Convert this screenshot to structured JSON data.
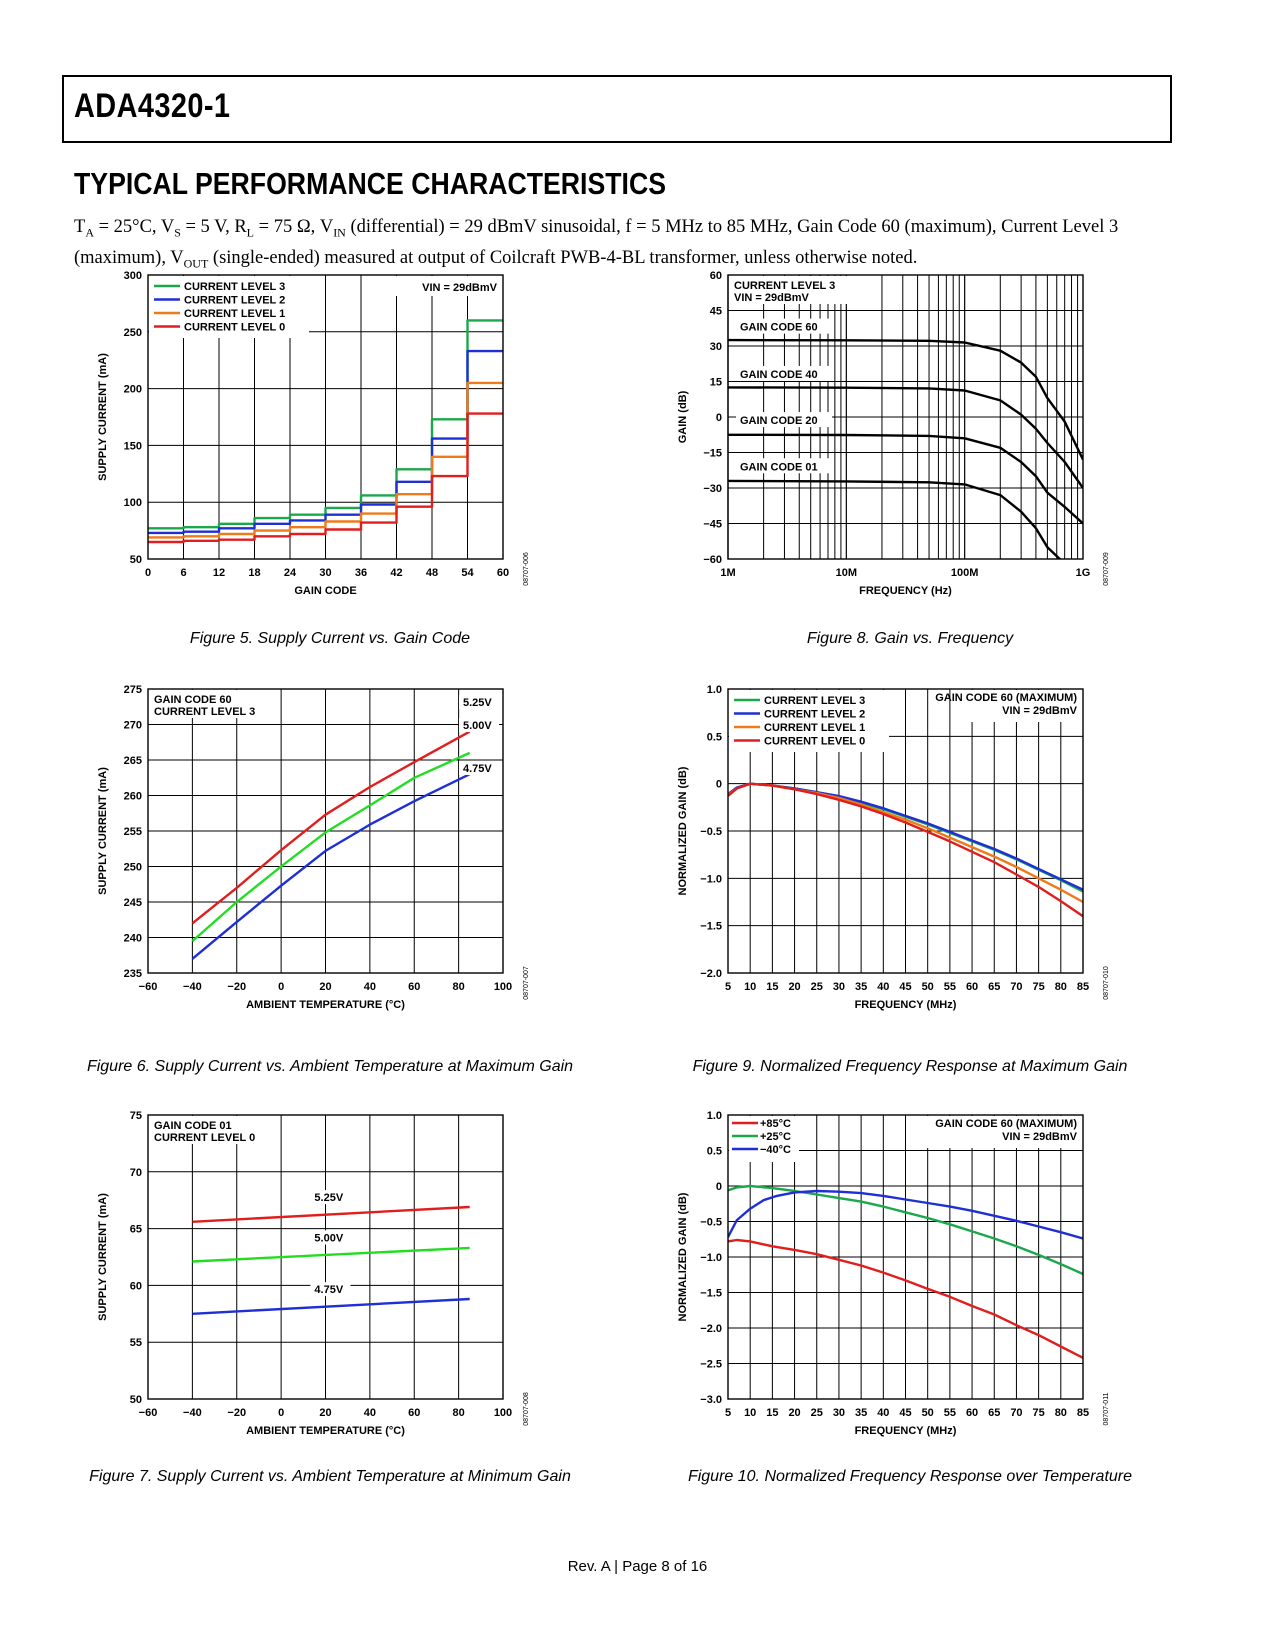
{
  "header": {
    "part_number": "ADA4320-1"
  },
  "section_title": "TYPICAL PERFORMANCE CHARACTERISTICS",
  "conditions_html": "T<sub>A</sub> = 25°C, V<sub>S</sub> = 5 V, R<sub>L</sub> = 75 Ω, V<sub>IN</sub> (differential) = 29 dBmV sinusoidal, f = 5 MHz to 85 MHz, Gain Code 60 (maximum), Current Level 3 (maximum), V<sub>OUT</sub> (single-ended) measured at output of Coilcraft PWB-4-BL transformer, unless otherwise noted.",
  "footer": "Rev. A | Page 8 of 16",
  "colors": {
    "green": "#1aa84a",
    "blue": "#1f2fd6",
    "orange": "#ee7a1a",
    "red": "#e01e1e",
    "lime": "#22dd22"
  },
  "figures": [
    {
      "id": "fig5",
      "caption": "Figure 5. Supply Current vs. Gain Code",
      "code": "08707-006",
      "chart_data": {
        "type": "line",
        "xlabel": "GAIN CODE",
        "ylabel": "SUPPLY CURRENT (mA)",
        "xlim": [
          0,
          60
        ],
        "ylim": [
          50,
          300
        ],
        "xticks": [
          0,
          6,
          12,
          18,
          24,
          30,
          36,
          42,
          48,
          54,
          60
        ],
        "yticks": [
          50,
          100,
          150,
          200,
          250,
          300
        ],
        "annotation": "VIN = 29dBmV",
        "series": [
          {
            "name": "CURRENT LEVEL 3",
            "color": "#1aa84a",
            "x": [
              0,
              6,
              6,
              12,
              12,
              18,
              18,
              24,
              24,
              30,
              30,
              36,
              36,
              42,
              42,
              48,
              48,
              54,
              54,
              60
            ],
            "y": [
              77,
              77,
              78,
              78,
              81,
              81,
              86,
              86,
              89,
              89,
              95,
              95,
              106,
              106,
              129,
              129,
              173,
              173,
              260,
              260
            ]
          },
          {
            "name": "CURRENT LEVEL 2",
            "color": "#1f2fd6",
            "x": [
              0,
              6,
              6,
              12,
              12,
              18,
              18,
              24,
              24,
              30,
              30,
              36,
              36,
              42,
              42,
              48,
              48,
              54,
              54,
              60
            ],
            "y": [
              73,
              73,
              74,
              74,
              77,
              77,
              81,
              81,
              84,
              84,
              89,
              89,
              98,
              98,
              118,
              118,
              156,
              156,
              233,
              233
            ]
          },
          {
            "name": "CURRENT LEVEL 1",
            "color": "#ee7a1a",
            "x": [
              0,
              6,
              6,
              12,
              12,
              18,
              18,
              24,
              24,
              30,
              30,
              36,
              36,
              42,
              42,
              48,
              48,
              54,
              54,
              60
            ],
            "y": [
              69,
              69,
              70,
              70,
              72,
              72,
              75,
              75,
              78,
              78,
              83,
              83,
              90,
              90,
              107,
              107,
              140,
              140,
              205,
              205
            ]
          },
          {
            "name": "CURRENT LEVEL 0",
            "color": "#e01e1e",
            "x": [
              0,
              6,
              6,
              12,
              12,
              18,
              18,
              24,
              24,
              30,
              30,
              36,
              36,
              42,
              42,
              48,
              48,
              54,
              54,
              60
            ],
            "y": [
              65,
              65,
              66,
              66,
              67,
              67,
              70,
              70,
              72,
              72,
              76,
              76,
              82,
              82,
              96,
              96,
              123,
              123,
              178,
              178
            ]
          }
        ]
      }
    },
    {
      "id": "fig6",
      "caption": "Figure 6. Supply Current vs. Ambient Temperature at Maximum Gain",
      "code": "08707-007",
      "chart_data": {
        "type": "line",
        "xlabel": "AMBIENT TEMPERATURE (°C)",
        "ylabel": "SUPPLY CURRENT (mA)",
        "xlim": [
          -60,
          100
        ],
        "ylim": [
          235,
          275
        ],
        "xticks": [
          -60,
          -40,
          -20,
          0,
          20,
          40,
          60,
          80,
          100
        ],
        "yticks": [
          235,
          240,
          245,
          250,
          255,
          260,
          265,
          270,
          275
        ],
        "annotation_lines": [
          "GAIN CODE 60",
          "CURRENT LEVEL 3"
        ],
        "series": [
          {
            "name": "5.25V",
            "color": "#e01e1e",
            "x": [
              -40,
              -20,
              0,
              20,
              40,
              60,
              85
            ],
            "y": [
              242,
              247,
              252.3,
              257.3,
              261.2,
              264.7,
              269
            ]
          },
          {
            "name": "5.00V",
            "color": "#22dd22",
            "x": [
              -40,
              -20,
              0,
              20,
              40,
              60,
              85
            ],
            "y": [
              239.5,
              245,
              250,
              254.8,
              258.6,
              262.5,
              266
            ]
          },
          {
            "name": "4.75V",
            "color": "#1f2fd6",
            "x": [
              -40,
              -20,
              0,
              20,
              40,
              60,
              85
            ],
            "y": [
              237,
              242.2,
              247.3,
              252.2,
              255.9,
              259.2,
              263
            ]
          }
        ]
      }
    },
    {
      "id": "fig7",
      "caption": "Figure 7. Supply Current vs. Ambient Temperature at Minimum Gain",
      "code": "08707-008",
      "chart_data": {
        "type": "line",
        "xlabel": "AMBIENT TEMPERATURE (°C)",
        "ylabel": "SUPPLY CURRENT (mA)",
        "xlim": [
          -60,
          100
        ],
        "ylim": [
          50,
          75
        ],
        "xticks": [
          -60,
          -40,
          -20,
          0,
          20,
          40,
          60,
          80,
          100
        ],
        "yticks": [
          50,
          55,
          60,
          65,
          70,
          75
        ],
        "annotation_lines": [
          "GAIN CODE 01",
          "CURRENT LEVEL 0"
        ],
        "series": [
          {
            "name": "5.25V",
            "color": "#e01e1e",
            "x": [
              -40,
              85
            ],
            "y": [
              65.6,
              66.9
            ]
          },
          {
            "name": "5.00V",
            "color": "#22dd22",
            "x": [
              -40,
              85
            ],
            "y": [
              62.1,
              63.3
            ]
          },
          {
            "name": "4.75V",
            "color": "#1f2fd6",
            "x": [
              -40,
              85
            ],
            "y": [
              57.5,
              58.8
            ]
          }
        ]
      }
    },
    {
      "id": "fig8",
      "caption": "Figure 8. Gain vs. Frequency",
      "code": "08707-009",
      "chart_data": {
        "type": "line",
        "xscale": "log",
        "xlabel": "FREQUENCY (Hz)",
        "ylabel": "GAIN (dB)",
        "xlim": [
          1000000,
          1000000000
        ],
        "ylim": [
          -60,
          60
        ],
        "xticks": [
          1000000,
          10000000,
          100000000,
          1000000000
        ],
        "xticklabels": [
          "1M",
          "10M",
          "100M",
          "1G"
        ],
        "yticks": [
          -60,
          -45,
          -30,
          -15,
          0,
          15,
          30,
          45,
          60
        ],
        "annotation_lines": [
          "CURRENT LEVEL 3",
          "VIN = 29dBmV"
        ],
        "series": [
          {
            "name": "GAIN CODE 60",
            "color": "#000000",
            "x": [
              1000000,
              10000000,
              50000000,
              100000000,
              200000000,
              300000000,
              400000000,
              500000000,
              700000000,
              1000000000
            ],
            "y": [
              32.5,
              32.4,
              32.2,
              31.5,
              28,
              23,
              17,
              8,
              -2,
              -18
            ]
          },
          {
            "name": "GAIN CODE 40",
            "color": "#000000",
            "x": [
              1000000,
              10000000,
              50000000,
              100000000,
              200000000,
              300000000,
              400000000,
              500000000,
              700000000,
              1000000000
            ],
            "y": [
              12.5,
              12.4,
              12.1,
              11.2,
              7,
              1,
              -5,
              -11,
              -19,
              -30
            ]
          },
          {
            "name": "GAIN CODE 20",
            "color": "#000000",
            "x": [
              1000000,
              10000000,
              50000000,
              100000000,
              200000000,
              300000000,
              400000000,
              500000000,
              700000000,
              1000000000
            ],
            "y": [
              -7.5,
              -7.6,
              -8,
              -9,
              -13,
              -19,
              -25,
              -32,
              -38,
              -45
            ]
          },
          {
            "name": "GAIN CODE 01",
            "color": "#000000",
            "x": [
              1000000,
              10000000,
              50000000,
              100000000,
              200000000,
              300000000,
              400000000,
              500000000,
              700000000
            ],
            "y": [
              -27,
              -27.2,
              -27.6,
              -28.5,
              -33,
              -40,
              -47,
              -55,
              -62
            ]
          }
        ]
      }
    },
    {
      "id": "fig9",
      "caption": "Figure 9. Normalized Frequency Response at Maximum Gain",
      "code": "08707-010",
      "chart_data": {
        "type": "line",
        "xlabel": "FREQUENCY (MHz)",
        "ylabel": "NORMALIZED GAIN (dB)",
        "xlim": [
          5,
          85
        ],
        "ylim": [
          -2.0,
          1.0
        ],
        "xticks": [
          5,
          10,
          15,
          20,
          25,
          30,
          35,
          40,
          45,
          50,
          55,
          60,
          65,
          70,
          75,
          80,
          85
        ],
        "yticks": [
          -2.0,
          -1.5,
          -1.0,
          -0.5,
          0,
          0.5,
          1.0
        ],
        "yticklabels": [
          "−2.0",
          "−1.5",
          "−1.0",
          "−0.5",
          "0",
          "0.5",
          "1.0"
        ],
        "annotation_lines": [
          "GAIN CODE 60 (MAXIMUM)",
          "VIN = 29dBmV"
        ],
        "series": [
          {
            "name": "CURRENT LEVEL 3",
            "color": "#1aa84a",
            "x": [
              5,
              7,
              10,
              15,
              20,
              25,
              30,
              35,
              40,
              45,
              50,
              55,
              60,
              65,
              70,
              75,
              80,
              85
            ],
            "y": [
              -0.12,
              -0.05,
              0,
              -0.02,
              -0.05,
              -0.09,
              -0.14,
              -0.2,
              -0.27,
              -0.35,
              -0.43,
              -0.52,
              -0.61,
              -0.7,
              -0.8,
              -0.91,
              -1.02,
              -1.14
            ]
          },
          {
            "name": "CURRENT LEVEL 2",
            "color": "#1f2fd6",
            "x": [
              5,
              7,
              10,
              15,
              20,
              25,
              30,
              35,
              40,
              45,
              50,
              55,
              60,
              65,
              70,
              75,
              80,
              85
            ],
            "y": [
              -0.11,
              -0.04,
              0,
              -0.02,
              -0.05,
              -0.09,
              -0.13,
              -0.19,
              -0.26,
              -0.34,
              -0.42,
              -0.51,
              -0.6,
              -0.69,
              -0.79,
              -0.9,
              -1.01,
              -1.12
            ]
          },
          {
            "name": "CURRENT LEVEL 1",
            "color": "#ee7a1a",
            "x": [
              5,
              7,
              10,
              15,
              20,
              25,
              30,
              35,
              40,
              45,
              50,
              55,
              60,
              65,
              70,
              75,
              80,
              85
            ],
            "y": [
              -0.12,
              -0.05,
              0,
              -0.02,
              -0.06,
              -0.1,
              -0.15,
              -0.22,
              -0.3,
              -0.38,
              -0.47,
              -0.57,
              -0.67,
              -0.77,
              -0.88,
              -1.0,
              -1.12,
              -1.25
            ]
          },
          {
            "name": "CURRENT LEVEL 0",
            "color": "#e01e1e",
            "x": [
              5,
              7,
              10,
              15,
              20,
              25,
              30,
              35,
              40,
              45,
              50,
              55,
              60,
              65,
              70,
              75,
              80,
              85
            ],
            "y": [
              -0.13,
              -0.05,
              0,
              -0.02,
              -0.06,
              -0.11,
              -0.17,
              -0.24,
              -0.32,
              -0.41,
              -0.51,
              -0.61,
              -0.72,
              -0.83,
              -0.96,
              -1.09,
              -1.24,
              -1.4
            ]
          }
        ]
      }
    },
    {
      "id": "fig10",
      "caption": "Figure 10. Normalized Frequency Response over Temperature",
      "code": "08707-011",
      "chart_data": {
        "type": "line",
        "xlabel": "FREQUENCY (MHz)",
        "ylabel": "NORMALIZED GAIN (dB)",
        "xlim": [
          5,
          85
        ],
        "ylim": [
          -3.0,
          1.0
        ],
        "xticks": [
          5,
          10,
          15,
          20,
          25,
          30,
          35,
          40,
          45,
          50,
          55,
          60,
          65,
          70,
          75,
          80,
          85
        ],
        "yticks": [
          -3.0,
          -2.5,
          -2.0,
          -1.5,
          -1.0,
          -0.5,
          0,
          0.5,
          1.0
        ],
        "yticklabels": [
          "−3.0",
          "−2.5",
          "−2.0",
          "−1.5",
          "−1.0",
          "−0.5",
          "0",
          "0.5",
          "1.0"
        ],
        "annotation_lines": [
          "GAIN CODE 60 (MAXIMUM)",
          "VIN = 29dBmV"
        ],
        "series": [
          {
            "name": "+85°C",
            "color": "#e01e1e",
            "x": [
              5,
              7,
              10,
              15,
              20,
              25,
              30,
              35,
              40,
              45,
              50,
              55,
              60,
              65,
              70,
              75,
              80,
              85
            ],
            "y": [
              -0.78,
              -0.76,
              -0.78,
              -0.85,
              -0.9,
              -0.96,
              -1.04,
              -1.12,
              -1.22,
              -1.33,
              -1.45,
              -1.56,
              -1.69,
              -1.81,
              -1.96,
              -2.1,
              -2.26,
              -2.42
            ]
          },
          {
            "name": "+25°C",
            "color": "#1aa84a",
            "x": [
              5,
              7,
              10,
              15,
              20,
              25,
              30,
              35,
              40,
              45,
              50,
              55,
              60,
              65,
              70,
              75,
              80,
              85
            ],
            "y": [
              -0.06,
              -0.02,
              0,
              -0.03,
              -0.07,
              -0.12,
              -0.17,
              -0.22,
              -0.29,
              -0.37,
              -0.45,
              -0.54,
              -0.64,
              -0.74,
              -0.85,
              -0.97,
              -1.1,
              -1.24
            ]
          },
          {
            "name": "−40°C",
            "color": "#1f2fd6",
            "x": [
              5,
              7,
              10,
              13,
              16,
              20,
              25,
              30,
              35,
              40,
              45,
              50,
              55,
              60,
              65,
              70,
              75,
              80,
              85
            ],
            "y": [
              -0.72,
              -0.48,
              -0.32,
              -0.2,
              -0.14,
              -0.09,
              -0.07,
              -0.08,
              -0.1,
              -0.14,
              -0.19,
              -0.24,
              -0.29,
              -0.35,
              -0.42,
              -0.49,
              -0.57,
              -0.65,
              -0.74
            ]
          }
        ]
      }
    }
  ]
}
